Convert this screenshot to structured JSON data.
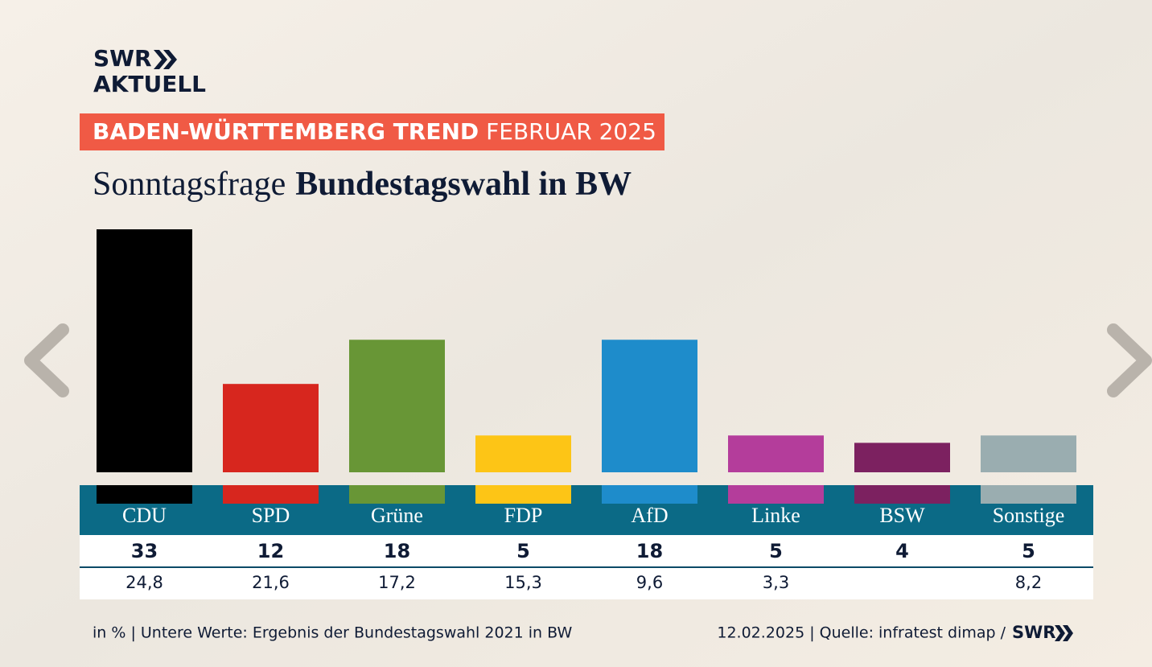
{
  "logo": {
    "brand": "SWR",
    "product": "AKTUELL"
  },
  "banner": {
    "bold": "BADEN-WÜRTTEMBERG TREND",
    "regular": "FEBRUAR 2025"
  },
  "chart_data": {
    "type": "bar",
    "title": "Sonntagsfrage",
    "title_bold": "Bundestagswahl in BW",
    "categories": [
      "CDU",
      "SPD",
      "Grüne",
      "FDP",
      "AfD",
      "Linke",
      "BSW",
      "Sonstige"
    ],
    "values": [
      33,
      12,
      18,
      5,
      18,
      5,
      4,
      5
    ],
    "colors": [
      "#000000",
      "#d7261e",
      "#689636",
      "#fdc516",
      "#1e8ccb",
      "#b43d9b",
      "#7c2160",
      "#9aadb0"
    ],
    "previous_values": [
      24.8,
      21.6,
      17.2,
      15.3,
      9.6,
      3.3,
      null,
      8.2
    ],
    "previous_value_labels": [
      "24,8",
      "21,6",
      "17,2",
      "15,3",
      "9,6",
      "3,3",
      null,
      "8,2"
    ]
  },
  "footer": {
    "note": "in % | Untere Werte: Ergebnis der Bundestagswahl 2021 in BW",
    "source": "12.02.2025 | Quelle: infratest dimap /",
    "logo": "SWR"
  }
}
